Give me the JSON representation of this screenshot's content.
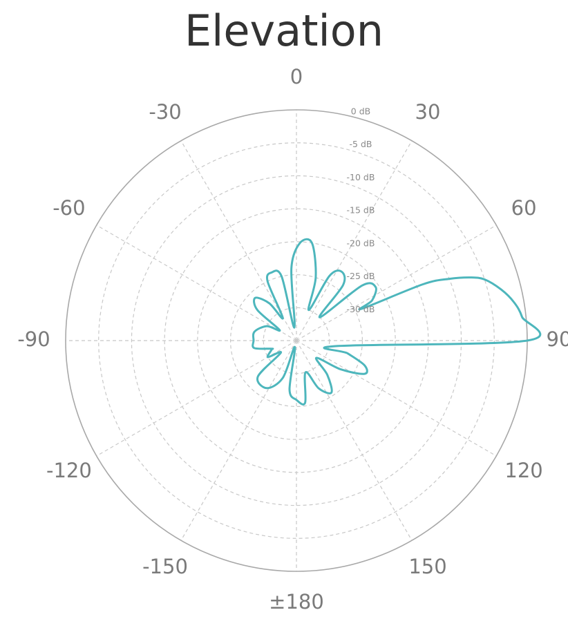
{
  "chart_data": {
    "type": "polar-line",
    "title": "Elevation",
    "angle_ticks": [
      {
        "deg": 0,
        "label": "0"
      },
      {
        "deg": 30,
        "label": "30"
      },
      {
        "deg": 60,
        "label": "60"
      },
      {
        "deg": 90,
        "label": "90"
      },
      {
        "deg": 120,
        "label": "120"
      },
      {
        "deg": 150,
        "label": "150"
      },
      {
        "deg": 180,
        "label": "±180"
      },
      {
        "deg": -150,
        "label": "-150"
      },
      {
        "deg": -120,
        "label": "-120"
      },
      {
        "deg": -90,
        "label": "-90"
      },
      {
        "deg": -60,
        "label": "-60"
      },
      {
        "deg": -30,
        "label": "-30"
      }
    ],
    "radial_ticks": [
      {
        "db": 0,
        "label": "0 dB"
      },
      {
        "db": -5,
        "label": "-5 dB"
      },
      {
        "db": -10,
        "label": "-10 dB"
      },
      {
        "db": -15,
        "label": "-15 dB"
      },
      {
        "db": -20,
        "label": "-20 dB"
      },
      {
        "db": -25,
        "label": "-25 dB"
      },
      {
        "db": -30,
        "label": "-30 dB"
      }
    ],
    "r_range_db": [
      -35,
      0
    ],
    "grid": true,
    "series": [
      {
        "color": "#4db6bc",
        "points": [
          [
            90,
            0
          ],
          [
            84,
            -0.6
          ],
          [
            80,
            -1.5
          ],
          [
            76,
            -3
          ],
          [
            72,
            -5
          ],
          [
            70,
            -7
          ],
          [
            68,
            -10
          ],
          [
            66,
            -14
          ],
          [
            64,
            -24
          ],
          [
            62,
            -22
          ],
          [
            56,
            -20.5
          ],
          [
            50,
            -22
          ],
          [
            45,
            -30
          ],
          [
            40,
            -24
          ],
          [
            33,
            -22.5
          ],
          [
            27,
            -24
          ],
          [
            22,
            -30
          ],
          [
            17,
            -25
          ],
          [
            9,
            -20
          ],
          [
            2,
            -20.2
          ],
          [
            -4,
            -24
          ],
          [
            -9,
            -33
          ],
          [
            -13,
            -25
          ],
          [
            -20,
            -24
          ],
          [
            -26,
            -25
          ],
          [
            -31,
            -31
          ],
          [
            -36,
            -28
          ],
          [
            -44,
            -26
          ],
          [
            -52,
            -27.5
          ],
          [
            -58,
            -32
          ],
          [
            -64,
            -30
          ],
          [
            -78,
            -28.5
          ],
          [
            -90,
            -28.5
          ],
          [
            -100,
            -28.5
          ],
          [
            -108,
            -31
          ],
          [
            -110,
            -31
          ],
          [
            -120,
            -30
          ],
          [
            -128,
            -32
          ],
          [
            -133,
            -27
          ],
          [
            -148,
            -26.5
          ],
          [
            -160,
            -29
          ],
          [
            -166,
            -34
          ],
          [
            -172,
            -27.5
          ],
          [
            -180,
            -26
          ],
          [
            -188,
            -25.5
          ],
          [
            -196,
            -30
          ],
          [
            -205,
            -27
          ],
          [
            -214,
            -25.5
          ],
          [
            -222,
            -28
          ],
          [
            -229,
            -31
          ],
          [
            -237,
            -27
          ],
          [
            -244,
            -23.5
          ],
          [
            -250,
            -24
          ],
          [
            -256,
            -27
          ],
          [
            -262,
            -29
          ]
        ]
      }
    ]
  }
}
